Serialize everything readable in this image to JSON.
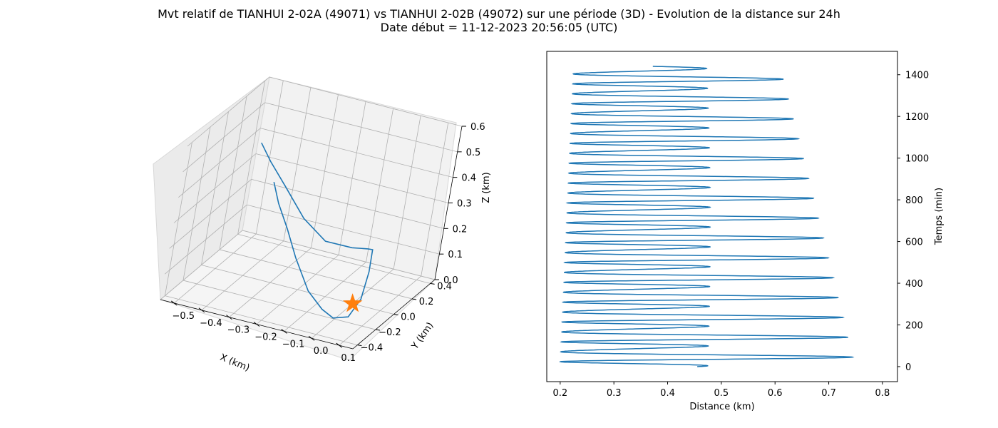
{
  "figure": {
    "title_line1": "Mvt relatif de TIANHUI 2-02A (49071) vs TIANHUI 2-02B (49072) sur une période (3D) - Evolution de la distance sur 24h",
    "title_line2": "Date début = 11-12-2023 20:56:05 (UTC)"
  },
  "chart_data": [
    {
      "type": "line3d",
      "xlabel": "X (km)",
      "ylabel": "Y (km)",
      "zlabel": "Z (km)",
      "xlim": [
        -0.55,
        0.15
      ],
      "ylim": [
        -0.45,
        0.45
      ],
      "zlim": [
        0,
        0.6
      ],
      "xticks": [
        "−0.5",
        "−0.4",
        "−0.3",
        "−0.2",
        "−0.1",
        "0.0",
        "0.1"
      ],
      "yticks": [
        "−0.4",
        "−0.2",
        "0.0",
        "0.2",
        "0.4"
      ],
      "zticks": [
        "0.0",
        "0.1",
        "0.2",
        "0.3",
        "0.4",
        "0.5",
        "0.6"
      ],
      "grid": true,
      "series": [
        {
          "color": "#1f77b4",
          "x": [
            -0.37,
            -0.33,
            -0.27,
            -0.21,
            -0.13,
            -0.06,
            0.0,
            0.06,
            0.08,
            0.07,
            0.05,
            0.02,
            -0.05,
            -0.16,
            -0.26,
            -0.36,
            -0.44,
            -0.47
          ],
          "y": [
            0.08,
            0.04,
            -0.01,
            -0.06,
            -0.12,
            -0.16,
            -0.22,
            -0.25,
            -0.2,
            -0.12,
            -0.05,
            0.0,
            0.05,
            0.1,
            0.14,
            0.2,
            0.25,
            0.2
          ],
          "z": [
            0.35,
            0.29,
            0.22,
            0.14,
            0.05,
            0.01,
            0.01,
            0.04,
            0.1,
            0.18,
            0.24,
            0.22,
            0.19,
            0.17,
            0.22,
            0.3,
            0.36,
            0.44
          ]
        }
      ],
      "marker": {
        "name": "origin",
        "shape": "star",
        "color": "#ff7f0e",
        "x": 0.0,
        "y": 0.0,
        "z": 0.0
      }
    },
    {
      "type": "line",
      "xlabel": "Distance (km)",
      "ylabel": "Temps (min)",
      "xlim": [
        0.175,
        0.828
      ],
      "ylim": [
        -72,
        1512
      ],
      "xticks": [
        "0.2",
        "0.3",
        "0.4",
        "0.5",
        "0.6",
        "0.7",
        "0.8"
      ],
      "yticks": [
        "0",
        "200",
        "400",
        "600",
        "800",
        "1000",
        "1200",
        "1400"
      ],
      "grid": false,
      "series": [
        {
          "color": "#1f77b4",
          "minutes_start": 0,
          "minutes_end": 1440,
          "period_min": 47.6,
          "mean_start": 0.5,
          "mean_end": 0.43,
          "amp_start": 0.3,
          "amp_end": 0.205,
          "mod_start": 0.68,
          "mod_end": 0.48,
          "phase0": 1.62
        }
      ]
    }
  ]
}
